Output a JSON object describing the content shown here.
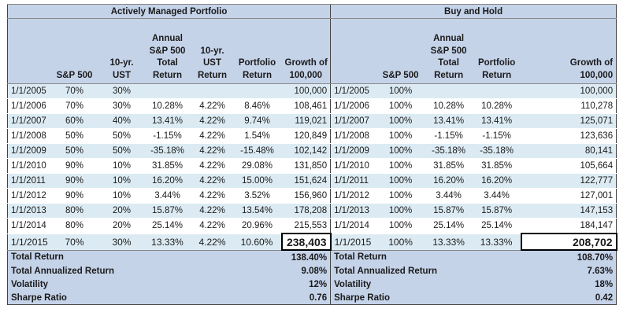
{
  "left": {
    "title": "Actively Managed Portfolio",
    "headers": [
      "",
      "S&P 500",
      "10-yr.\nUST",
      "Annual\nS&P 500\nTotal\nReturn",
      "10-yr.\nUST\nReturn",
      "Portfolio\nReturn",
      "Growth of\n100,000"
    ],
    "rows": [
      [
        "1/1/2005",
        "70%",
        "30%",
        "",
        "",
        "",
        "100,000"
      ],
      [
        "1/1/2006",
        "70%",
        "30%",
        "10.28%",
        "4.22%",
        "8.46%",
        "108,461"
      ],
      [
        "1/1/2007",
        "60%",
        "40%",
        "13.41%",
        "4.22%",
        "9.74%",
        "119,021"
      ],
      [
        "1/1/2008",
        "50%",
        "50%",
        "-1.15%",
        "4.22%",
        "1.54%",
        "120,849"
      ],
      [
        "1/1/2009",
        "50%",
        "50%",
        "-35.18%",
        "4.22%",
        "-15.48%",
        "102,142"
      ],
      [
        "1/1/2010",
        "90%",
        "10%",
        "31.85%",
        "4.22%",
        "29.08%",
        "131,850"
      ],
      [
        "1/1/2011",
        "90%",
        "10%",
        "16.20%",
        "4.22%",
        "15.00%",
        "151,624"
      ],
      [
        "1/1/2012",
        "90%",
        "10%",
        "3.44%",
        "4.22%",
        "3.52%",
        "156,960"
      ],
      [
        "1/1/2013",
        "80%",
        "20%",
        "15.87%",
        "4.22%",
        "13.54%",
        "178,208"
      ],
      [
        "1/1/2014",
        "80%",
        "20%",
        "25.14%",
        "4.22%",
        "20.96%",
        "215,553"
      ],
      [
        "1/1/2015",
        "70%",
        "30%",
        "13.33%",
        "4.22%",
        "10.60%",
        "238,403"
      ]
    ],
    "summary": [
      {
        "label": "Total Return",
        "value": "138.40%"
      },
      {
        "label": "Total Annualized Return",
        "value": "9.08%"
      },
      {
        "label": "Volatility",
        "value": "12%"
      },
      {
        "label": "Sharpe Ratio",
        "value": "0.76"
      }
    ]
  },
  "right": {
    "title": "Buy and Hold",
    "headers": [
      "",
      "S&P 500",
      "Annual\nS&P 500\nTotal\nReturn",
      "Portfolio\nReturn",
      "Growth of\n100,000"
    ],
    "rows": [
      [
        "1/1/2005",
        "100%",
        "",
        "",
        "100,000"
      ],
      [
        "1/1/2006",
        "100%",
        "10.28%",
        "10.28%",
        "110,278"
      ],
      [
        "1/1/2007",
        "100%",
        "13.41%",
        "13.41%",
        "125,071"
      ],
      [
        "1/1/2008",
        "100%",
        "-1.15%",
        "-1.15%",
        "123,636"
      ],
      [
        "1/1/2009",
        "100%",
        "-35.18%",
        "-35.18%",
        "80,141"
      ],
      [
        "1/1/2010",
        "100%",
        "31.85%",
        "31.85%",
        "105,664"
      ],
      [
        "1/1/2011",
        "100%",
        "16.20%",
        "16.20%",
        "122,777"
      ],
      [
        "1/1/2012",
        "100%",
        "3.44%",
        "3.44%",
        "127,001"
      ],
      [
        "1/1/2013",
        "100%",
        "15.87%",
        "15.87%",
        "147,153"
      ],
      [
        "1/1/2014",
        "100%",
        "25.14%",
        "25.14%",
        "184,147"
      ],
      [
        "1/1/2015",
        "100%",
        "13.33%",
        "13.33%",
        "208,702"
      ]
    ],
    "summary": [
      {
        "label": "Total Return",
        "value": "108.70%"
      },
      {
        "label": "Total Annualized Return",
        "value": "7.63%"
      },
      {
        "label": "Volatility",
        "value": "18%"
      },
      {
        "label": "Sharpe Ratio",
        "value": "0.42"
      }
    ]
  }
}
